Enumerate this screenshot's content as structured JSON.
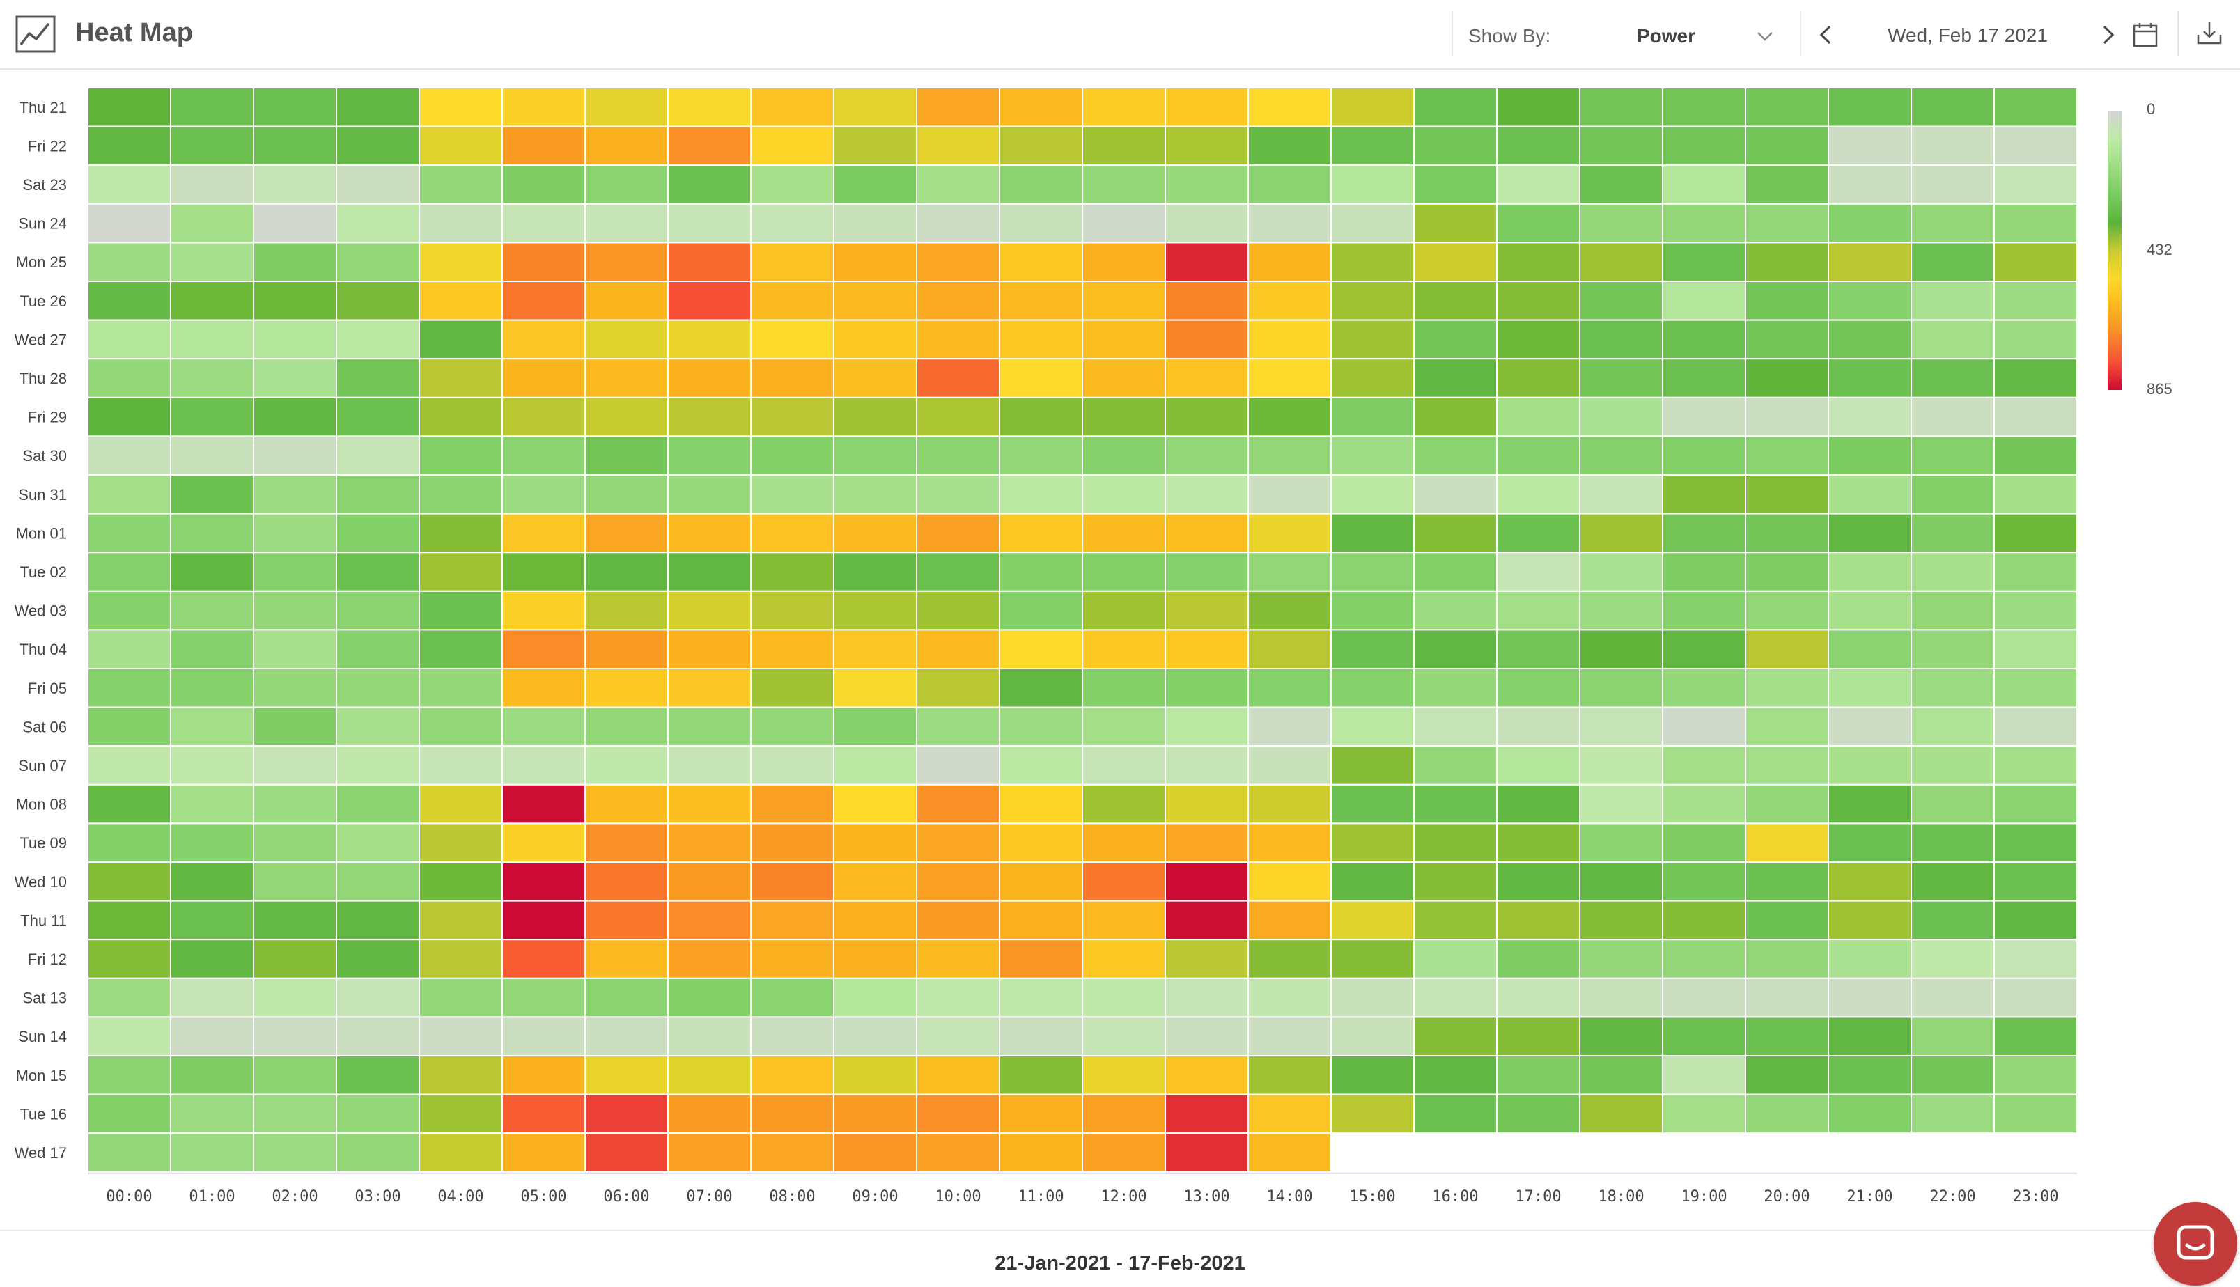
{
  "header": {
    "title": "Heat Map",
    "show_by_label": "Show By:",
    "show_by_value": "Power",
    "date": "Wed, Feb 17 2021"
  },
  "footer": {
    "range": "21-Jan-2021 - 17-Feb-2021"
  },
  "colors": {
    "scale": [
      "#d5d5d5",
      "#bfeaa8",
      "#9fdc84",
      "#7bcb60",
      "#5bb33b",
      "#c9cc30",
      "#fcd92a",
      "#fbb81e",
      "#fa8a28",
      "#f65035",
      "#cc0b34"
    ],
    "grid_line": "#ffffff",
    "empty": "#ffffff"
  },
  "icons": {
    "app": "line-chart-icon",
    "dropdown": "chevron-down-icon",
    "prev": "chevron-left-icon",
    "next": "chevron-right-icon",
    "calendar": "calendar-icon",
    "download": "download-icon",
    "chat": "chat-icon"
  },
  "chart_data": {
    "type": "heatmap",
    "x": [
      "00:00",
      "01:00",
      "02:00",
      "03:00",
      "04:00",
      "05:00",
      "06:00",
      "07:00",
      "08:00",
      "09:00",
      "10:00",
      "11:00",
      "12:00",
      "13:00",
      "14:00",
      "15:00",
      "16:00",
      "17:00",
      "18:00",
      "19:00",
      "20:00",
      "21:00",
      "22:00",
      "23:00"
    ],
    "y": [
      "Thu 21",
      "Fri 22",
      "Sat 23",
      "Sun 24",
      "Mon 25",
      "Tue 26",
      "Wed 27",
      "Thu 28",
      "Fri 29",
      "Sat 30",
      "Sun 31",
      "Mon 01",
      "Tue 02",
      "Wed 03",
      "Thu 04",
      "Fri 05",
      "Sat 06",
      "Sun 07",
      "Mon 08",
      "Tue 09",
      "Wed 10",
      "Thu 11",
      "Fri 12",
      "Sat 13",
      "Sun 14",
      "Mon 15",
      "Tue 16",
      "Wed 17"
    ],
    "colorbar": {
      "min": 0,
      "mid": 432,
      "max": 865,
      "ticks": [
        "0",
        "432",
        "865"
      ]
    },
    "values": [
      [
        350,
        300,
        300,
        330,
        520,
        540,
        480,
        510,
        580,
        480,
        640,
        600,
        550,
        560,
        520,
        440,
        300,
        350,
        280,
        280,
        280,
        300,
        300,
        280
      ],
      [
        330,
        300,
        300,
        320,
        470,
        660,
        620,
        680,
        530,
        420,
        480,
        420,
        400,
        410,
        320,
        300,
        280,
        300,
        280,
        280,
        280,
        30,
        40,
        30
      ],
      [
        80,
        40,
        60,
        40,
        200,
        250,
        220,
        300,
        150,
        260,
        160,
        220,
        200,
        190,
        220,
        120,
        260,
        80,
        300,
        120,
        280,
        40,
        40,
        60
      ],
      [
        10,
        160,
        10,
        80,
        50,
        60,
        60,
        60,
        60,
        50,
        30,
        50,
        20,
        50,
        40,
        50,
        400,
        260,
        200,
        200,
        200,
        230,
        200,
        200
      ],
      [
        180,
        150,
        250,
        200,
        500,
        700,
        670,
        740,
        580,
        620,
        640,
        560,
        620,
        830,
        610,
        400,
        440,
        380,
        400,
        300,
        380,
        420,
        300,
        400
      ],
      [
        320,
        360,
        360,
        370,
        560,
        720,
        610,
        780,
        600,
        600,
        630,
        600,
        590,
        700,
        560,
        400,
        380,
        380,
        280,
        120,
        280,
        230,
        140,
        180
      ],
      [
        120,
        120,
        120,
        100,
        330,
        570,
        470,
        490,
        520,
        560,
        600,
        560,
        590,
        700,
        530,
        400,
        280,
        360,
        300,
        300,
        280,
        280,
        160,
        180
      ],
      [
        200,
        180,
        140,
        280,
        420,
        610,
        600,
        620,
        620,
        590,
        740,
        520,
        600,
        580,
        520,
        400,
        330,
        380,
        280,
        300,
        350,
        300,
        300,
        320
      ],
      [
        340,
        300,
        330,
        300,
        400,
        420,
        430,
        420,
        420,
        400,
        410,
        380,
        380,
        380,
        360,
        250,
        380,
        160,
        140,
        40,
        40,
        60,
        40,
        40
      ],
      [
        50,
        50,
        40,
        60,
        240,
        220,
        280,
        230,
        240,
        220,
        220,
        200,
        230,
        200,
        200,
        170,
        220,
        230,
        230,
        240,
        220,
        260,
        230,
        280
      ],
      [
        160,
        300,
        180,
        220,
        220,
        180,
        200,
        190,
        150,
        160,
        150,
        100,
        100,
        80,
        40,
        100,
        40,
        100,
        60,
        380,
        380,
        150,
        240,
        160
      ],
      [
        220,
        220,
        180,
        240,
        380,
        570,
        640,
        600,
        580,
        600,
        650,
        560,
        600,
        590,
        490,
        330,
        380,
        300,
        400,
        280,
        280,
        330,
        250,
        360
      ],
      [
        230,
        330,
        230,
        300,
        400,
        360,
        330,
        330,
        380,
        320,
        300,
        240,
        240,
        230,
        200,
        220,
        240,
        60,
        140,
        250,
        250,
        150,
        150,
        200
      ],
      [
        230,
        200,
        200,
        220,
        300,
        540,
        420,
        450,
        420,
        410,
        400,
        240,
        400,
        420,
        380,
        240,
        180,
        160,
        180,
        230,
        200,
        150,
        200,
        180
      ],
      [
        150,
        230,
        150,
        230,
        300,
        690,
        660,
        620,
        600,
        570,
        600,
        520,
        560,
        560,
        420,
        300,
        330,
        280,
        350,
        330,
        420,
        220,
        200,
        130
      ],
      [
        230,
        230,
        200,
        200,
        200,
        600,
        560,
        570,
        400,
        510,
        420,
        330,
        240,
        240,
        230,
        230,
        200,
        230,
        220,
        200,
        160,
        130,
        180,
        180
      ],
      [
        240,
        160,
        250,
        150,
        200,
        180,
        200,
        200,
        200,
        230,
        180,
        180,
        160,
        100,
        30,
        100,
        60,
        50,
        60,
        20,
        160,
        30,
        130,
        40
      ],
      [
        80,
        80,
        60,
        80,
        60,
        60,
        80,
        60,
        60,
        100,
        20,
        100,
        60,
        60,
        50,
        380,
        200,
        120,
        80,
        160,
        160,
        150,
        150,
        160
      ],
      [
        320,
        160,
        180,
        220,
        460,
        860,
        600,
        590,
        650,
        520,
        680,
        530,
        400,
        460,
        440,
        300,
        300,
        330,
        80,
        150,
        200,
        330,
        200,
        220
      ],
      [
        240,
        230,
        200,
        160,
        420,
        540,
        680,
        640,
        660,
        610,
        640,
        560,
        620,
        640,
        600,
        400,
        380,
        380,
        220,
        250,
        500,
        300,
        300,
        300
      ],
      [
        380,
        330,
        200,
        200,
        360,
        880,
        720,
        660,
        700,
        600,
        650,
        610,
        720,
        880,
        530,
        330,
        380,
        330,
        330,
        280,
        300,
        400,
        330,
        300
      ],
      [
        360,
        300,
        320,
        330,
        420,
        900,
        720,
        690,
        640,
        620,
        660,
        620,
        600,
        860,
        630,
        470,
        390,
        400,
        380,
        380,
        300,
        400,
        300,
        330
      ],
      [
        380,
        330,
        380,
        330,
        420,
        760,
        600,
        650,
        620,
        620,
        600,
        670,
        560,
        420,
        380,
        380,
        140,
        250,
        200,
        200,
        200,
        140,
        80,
        60
      ],
      [
        180,
        60,
        80,
        60,
        200,
        200,
        220,
        240,
        220,
        120,
        80,
        80,
        80,
        60,
        70,
        50,
        60,
        60,
        50,
        40,
        40,
        30,
        40,
        40
      ],
      [
        80,
        30,
        30,
        40,
        30,
        40,
        40,
        50,
        40,
        40,
        60,
        40,
        60,
        40,
        40,
        50,
        380,
        380,
        330,
        300,
        300,
        330,
        200,
        300
      ],
      [
        220,
        250,
        220,
        300,
        420,
        620,
        490,
        470,
        580,
        460,
        590,
        380,
        490,
        580,
        400,
        330,
        330,
        250,
        280,
        70,
        330,
        300,
        280,
        200
      ],
      [
        240,
        180,
        180,
        200,
        400,
        760,
        800,
        660,
        660,
        660,
        680,
        620,
        650,
        820,
        570,
        420,
        300,
        280,
        400,
        160,
        200,
        240,
        180,
        200
      ],
      [
        200,
        180,
        180,
        200,
        430,
        620,
        790,
        650,
        640,
        670,
        650,
        610,
        650,
        820,
        600,
        null,
        null,
        null,
        null,
        null,
        null,
        null,
        null,
        null
      ]
    ]
  }
}
